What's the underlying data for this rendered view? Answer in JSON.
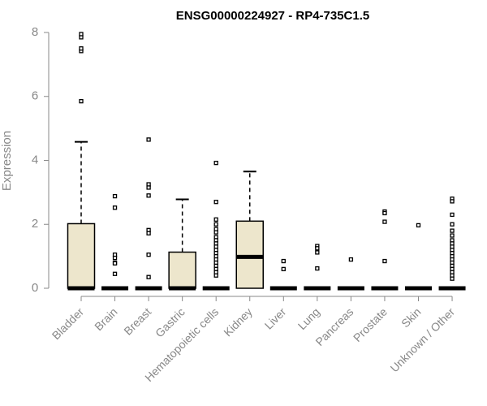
{
  "chart_data": {
    "type": "boxplot",
    "title": "ENSG00000224927 - RP4-735C1.5",
    "ylabel": "Expression",
    "xlabel": "",
    "ylim": [
      0,
      8
    ],
    "yticks": [
      "0",
      "2",
      "4",
      "6",
      "8"
    ],
    "categories": [
      "Bladder",
      "Brain",
      "Breast",
      "Gastric",
      "Hematopoietic cells",
      "Kidney",
      "Liver",
      "Lung",
      "Pancreas",
      "Prostate",
      "Skin",
      "Unknown / Other"
    ],
    "box_fill": "#ede6cc",
    "series": [
      {
        "category": "Bladder",
        "min": 0,
        "q1": 0,
        "median": 0,
        "q3": 2.02,
        "max": 4.58,
        "outliers": [
          5.85,
          7.42,
          7.5,
          7.85,
          7.95
        ]
      },
      {
        "category": "Brain",
        "min": 0,
        "q1": 0,
        "median": 0,
        "q3": 0,
        "max": 0,
        "outliers": [
          2.88,
          2.52,
          1.05,
          0.95,
          0.8,
          0.78,
          0.45
        ]
      },
      {
        "category": "Breast",
        "min": 0,
        "q1": 0,
        "median": 0,
        "q3": 0,
        "max": 0,
        "outliers": [
          4.65,
          3.25,
          3.15,
          2.9,
          1.82,
          1.72,
          1.05,
          0.35
        ]
      },
      {
        "category": "Gastric",
        "min": 0,
        "q1": 0,
        "median": 0,
        "q3": 1.13,
        "max": 2.78,
        "outliers": []
      },
      {
        "category": "Hematopoietic cells",
        "min": 0,
        "q1": 0,
        "median": 0,
        "q3": 0,
        "max": 0,
        "outliers": [
          3.92,
          2.7,
          2.15,
          2.0,
          1.85,
          1.75,
          1.6,
          1.5,
          1.4,
          1.3,
          1.2,
          1.1,
          1.0,
          0.9,
          0.8,
          0.7,
          0.6,
          0.5,
          0.4
        ]
      },
      {
        "category": "Kidney",
        "min": 0,
        "q1": 0,
        "median": 0.98,
        "q3": 2.1,
        "max": 3.65,
        "outliers": []
      },
      {
        "category": "Liver",
        "min": 0,
        "q1": 0,
        "median": 0,
        "q3": 0,
        "max": 0,
        "outliers": [
          0.85,
          0.6
        ]
      },
      {
        "category": "Lung",
        "min": 0,
        "q1": 0,
        "median": 0,
        "q3": 0,
        "max": 0,
        "outliers": [
          1.32,
          1.25,
          1.12,
          0.62
        ]
      },
      {
        "category": "Pancreas",
        "min": 0,
        "q1": 0,
        "median": 0,
        "q3": 0,
        "max": 0,
        "outliers": [
          0.9
        ]
      },
      {
        "category": "Prostate",
        "min": 0,
        "q1": 0,
        "median": 0,
        "q3": 0,
        "max": 0,
        "outliers": [
          2.4,
          2.35,
          2.08,
          0.85
        ]
      },
      {
        "category": "Skin",
        "min": 0,
        "q1": 0,
        "median": 0,
        "q3": 0,
        "max": 0,
        "outliers": [
          1.97
        ]
      },
      {
        "category": "Unknown / Other",
        "min": 0,
        "q1": 0,
        "median": 0,
        "q3": 0,
        "max": 0,
        "outliers": [
          2.8,
          2.72,
          2.3,
          2.0,
          1.8,
          1.65,
          1.5,
          1.4,
          1.3,
          1.2,
          1.1,
          1.0,
          0.9,
          0.8,
          0.7,
          0.6,
          0.5,
          0.4,
          0.3
        ]
      }
    ],
    "grid": false,
    "legend": "none"
  }
}
